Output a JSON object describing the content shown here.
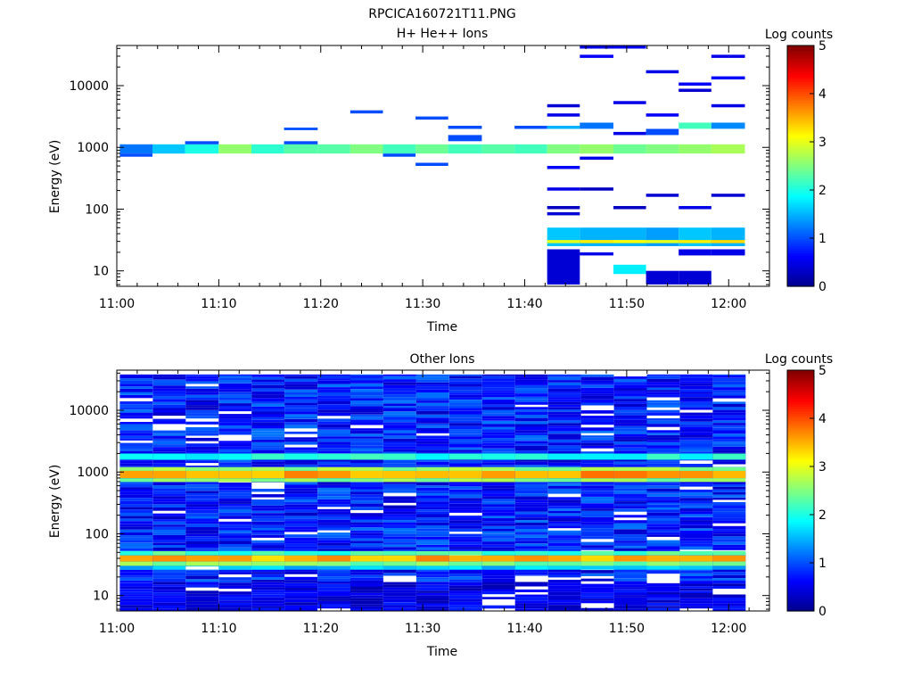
{
  "figure_title": "RPCICA160721T11.PNG",
  "colormap": [
    "#00008b",
    "#0000ff",
    "#0080ff",
    "#00ffff",
    "#80ff80",
    "#ffff00",
    "#ff8000",
    "#ff0000",
    "#800000"
  ],
  "chart_data": [
    {
      "type": "heatmap",
      "title": "H+ He++ Ions",
      "xlabel": "Time",
      "ylabel": "Energy (eV)",
      "x_ticks": [
        "11:00",
        "11:10",
        "11:20",
        "11:30",
        "11:40",
        "11:50",
        "12:00"
      ],
      "y_ticks": [
        "10",
        "100",
        "1000",
        "10000"
      ],
      "x_range_minutes": [
        0,
        64
      ],
      "y_range_log10": [
        0.75,
        4.65
      ],
      "colorbar": {
        "label": "Log counts",
        "ticks": [
          "0",
          "1",
          "2",
          "3",
          "4",
          "5"
        ],
        "range": [
          0,
          5
        ]
      },
      "time_bins": [
        [
          0.3,
          3.5
        ],
        [
          3.5,
          6.7
        ],
        [
          6.7,
          10.0
        ],
        [
          10.0,
          13.2
        ],
        [
          13.2,
          16.4
        ],
        [
          16.4,
          19.7
        ],
        [
          19.7,
          22.9
        ],
        [
          22.9,
          26.1
        ],
        [
          26.1,
          29.3
        ],
        [
          29.3,
          32.5
        ],
        [
          32.5,
          35.8
        ],
        [
          35.8,
          39.0
        ],
        [
          39.0,
          42.2
        ],
        [
          42.2,
          45.4
        ],
        [
          45.4,
          48.7
        ],
        [
          48.7,
          51.9
        ],
        [
          51.9,
          55.1
        ],
        [
          55.1,
          58.3
        ],
        [
          58.3,
          61.6
        ]
      ],
      "cells": [
        [
          0,
          2.9,
          3.05,
          1.2
        ],
        [
          0,
          2.85,
          2.9,
          1.0
        ],
        [
          1,
          2.9,
          3.05,
          1.6
        ],
        [
          2,
          2.9,
          3.05,
          2.0
        ],
        [
          2,
          3.05,
          3.1,
          1.0
        ],
        [
          3,
          2.9,
          3.05,
          2.6
        ],
        [
          4,
          2.9,
          3.05,
          2.1
        ],
        [
          5,
          2.9,
          3.05,
          2.3
        ],
        [
          5,
          3.05,
          3.1,
          1.0
        ],
        [
          5,
          3.28,
          3.32,
          1.0
        ],
        [
          6,
          2.9,
          3.05,
          2.3
        ],
        [
          7,
          2.9,
          3.05,
          2.5
        ],
        [
          7,
          3.55,
          3.6,
          1.0
        ],
        [
          8,
          2.9,
          3.05,
          2.2
        ],
        [
          8,
          2.85,
          2.9,
          1.0
        ],
        [
          9,
          2.9,
          3.05,
          2.4
        ],
        [
          9,
          2.7,
          2.75,
          1.0
        ],
        [
          9,
          3.45,
          3.5,
          1.0
        ],
        [
          10,
          2.9,
          3.05,
          2.2
        ],
        [
          10,
          3.1,
          3.2,
          1.0
        ],
        [
          10,
          3.3,
          3.35,
          1.0
        ],
        [
          11,
          2.9,
          3.05,
          2.3
        ],
        [
          12,
          2.9,
          3.05,
          2.2
        ],
        [
          12,
          3.3,
          3.35,
          1.0
        ],
        [
          13,
          2.9,
          3.05,
          2.5
        ],
        [
          13,
          0.78,
          1.35,
          0.4
        ],
        [
          13,
          1.4,
          1.7,
          1.6
        ],
        [
          13,
          1.45,
          1.5,
          3.0
        ],
        [
          13,
          2.3,
          2.35,
          0.5
        ],
        [
          13,
          2.65,
          2.7,
          0.6
        ],
        [
          13,
          3.3,
          3.35,
          1.5
        ],
        [
          13,
          3.5,
          3.55,
          0.5
        ],
        [
          13,
          3.65,
          3.7,
          0.4
        ],
        [
          13,
          2.0,
          2.05,
          0.3
        ],
        [
          13,
          1.9,
          1.95,
          0.4
        ],
        [
          14,
          2.9,
          3.05,
          2.6
        ],
        [
          14,
          1.4,
          1.7,
          1.5
        ],
        [
          14,
          1.45,
          1.5,
          3.2
        ],
        [
          14,
          2.8,
          2.85,
          0.5
        ],
        [
          14,
          3.3,
          3.4,
          1.2
        ],
        [
          14,
          4.45,
          4.5,
          0.6
        ],
        [
          14,
          4.6,
          4.65,
          0.5
        ],
        [
          14,
          2.3,
          2.35,
          0.3
        ],
        [
          14,
          1.25,
          1.3,
          0.5
        ],
        [
          15,
          2.9,
          3.05,
          2.4
        ],
        [
          15,
          1.4,
          1.7,
          1.5
        ],
        [
          15,
          1.45,
          1.5,
          3.1
        ],
        [
          15,
          0.95,
          1.1,
          1.8
        ],
        [
          15,
          3.2,
          3.25,
          0.5
        ],
        [
          15,
          4.6,
          4.65,
          0.6
        ],
        [
          15,
          3.7,
          3.75,
          0.5
        ],
        [
          15,
          2.0,
          2.05,
          0.3
        ],
        [
          16,
          2.9,
          3.05,
          2.5
        ],
        [
          16,
          1.4,
          1.7,
          1.4
        ],
        [
          16,
          1.45,
          1.5,
          3.0
        ],
        [
          16,
          0.78,
          1.0,
          0.4
        ],
        [
          16,
          3.5,
          3.55,
          0.6
        ],
        [
          16,
          4.2,
          4.25,
          0.5
        ],
        [
          16,
          3.2,
          3.3,
          1.0
        ],
        [
          16,
          2.2,
          2.25,
          0.4
        ],
        [
          17,
          2.9,
          3.05,
          2.6
        ],
        [
          17,
          1.4,
          1.7,
          1.6
        ],
        [
          17,
          1.45,
          1.5,
          3.2
        ],
        [
          17,
          1.25,
          1.35,
          0.5
        ],
        [
          17,
          0.78,
          1.0,
          0.4
        ],
        [
          17,
          3.3,
          3.4,
          2.2
        ],
        [
          17,
          4.0,
          4.05,
          0.6
        ],
        [
          17,
          3.9,
          3.95,
          0.4
        ],
        [
          17,
          2.0,
          2.05,
          0.5
        ],
        [
          18,
          2.9,
          3.05,
          2.7
        ],
        [
          18,
          1.4,
          1.7,
          1.5
        ],
        [
          18,
          1.45,
          1.5,
          3.3
        ],
        [
          18,
          1.25,
          1.35,
          0.5
        ],
        [
          18,
          3.3,
          3.4,
          1.3
        ],
        [
          18,
          4.1,
          4.15,
          0.6
        ],
        [
          18,
          4.45,
          4.5,
          0.5
        ],
        [
          18,
          3.65,
          3.7,
          0.5
        ],
        [
          18,
          2.2,
          2.25,
          0.4
        ]
      ]
    },
    {
      "type": "heatmap",
      "title": "Other Ions",
      "xlabel": "Time",
      "ylabel": "Energy (eV)",
      "x_ticks": [
        "11:00",
        "11:10",
        "11:20",
        "11:30",
        "11:40",
        "11:50",
        "12:00"
      ],
      "y_ticks": [
        "10",
        "100",
        "1000",
        "10000"
      ],
      "x_range_minutes": [
        0,
        64
      ],
      "y_range_log10": [
        0.75,
        4.65
      ],
      "colorbar": {
        "label": "Log counts",
        "ticks": [
          "0",
          "1",
          "2",
          "3",
          "4",
          "5"
        ],
        "range": [
          0,
          5
        ]
      },
      "bands": [
        {
          "log_lo": 2.9,
          "log_hi": 3.02,
          "level": 3.6
        },
        {
          "log_lo": 3.02,
          "log_hi": 3.08,
          "level": 2.6
        },
        {
          "log_lo": 2.84,
          "log_hi": 2.9,
          "level": 2.6
        },
        {
          "log_lo": 3.2,
          "log_hi": 3.3,
          "level": 2.0
        },
        {
          "log_lo": 1.55,
          "log_hi": 1.65,
          "level": 3.5
        },
        {
          "log_lo": 1.48,
          "log_hi": 1.55,
          "level": 2.5
        },
        {
          "log_lo": 1.65,
          "log_hi": 1.72,
          "level": 2.2
        },
        {
          "log_lo": 1.42,
          "log_hi": 1.48,
          "level": 1.6
        }
      ],
      "gaps": [
        [
          2,
          1.42,
          1.47
        ],
        [
          8,
          1.22,
          1.32
        ],
        [
          12,
          1.22,
          1.32
        ],
        [
          16,
          1.2,
          1.35
        ]
      ]
    }
  ]
}
